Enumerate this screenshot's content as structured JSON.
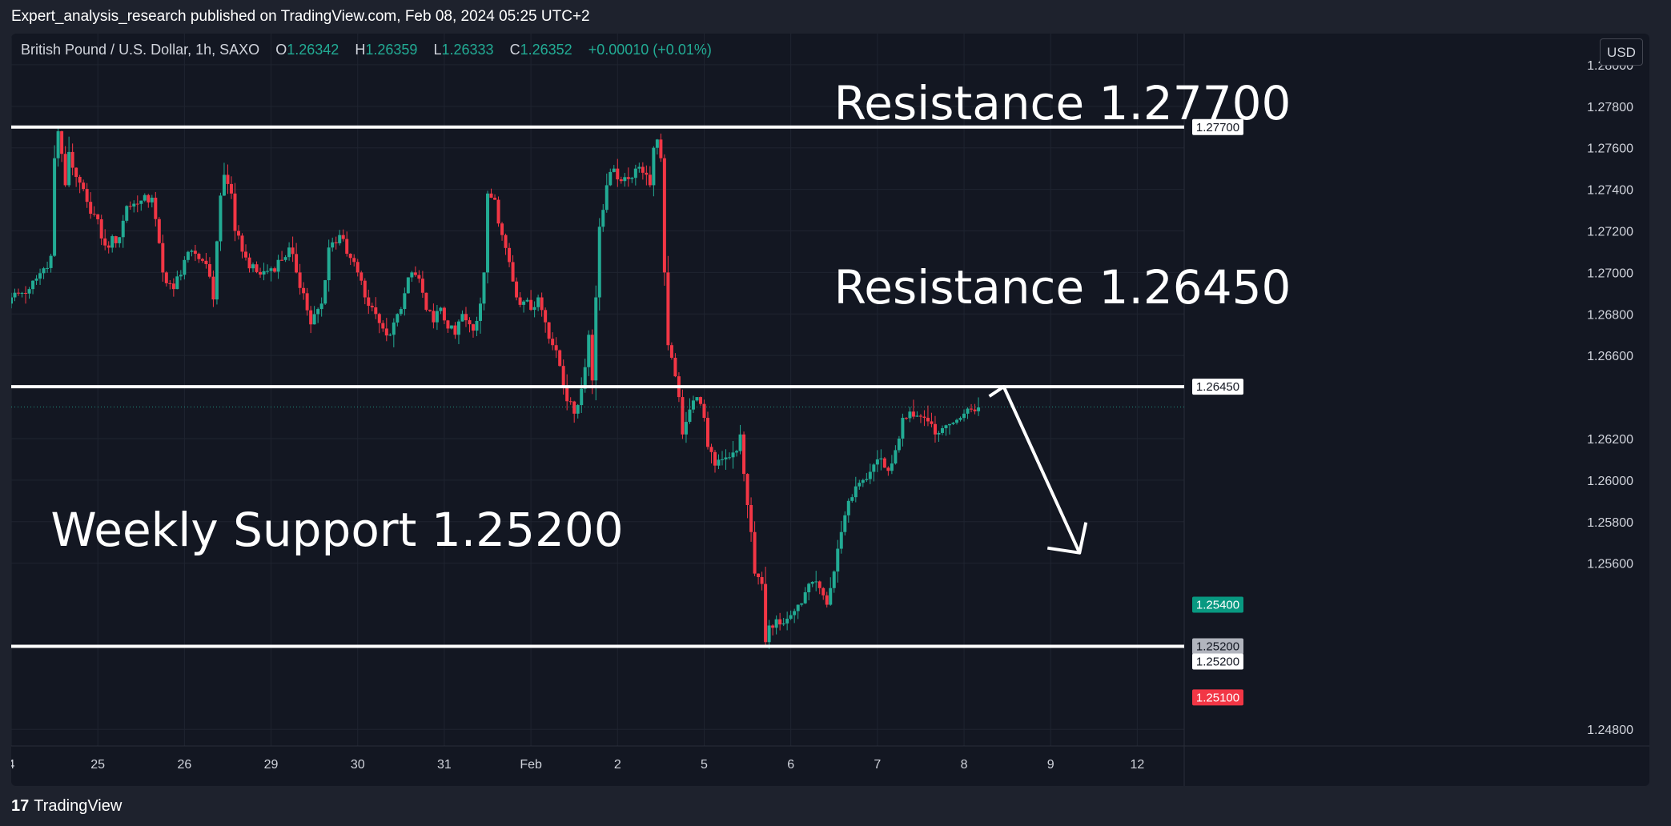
{
  "header": {
    "publisher_line": "Expert_analysis_research published on TradingView.com, Feb 08, 2024 05:25 UTC+2"
  },
  "legend": {
    "symbol": "British Pound / U.S. Dollar, 1h, SAXO",
    "o_label": "O",
    "o_value": "1.26342",
    "h_label": "H",
    "h_value": "1.26359",
    "l_label": "L",
    "l_value": "1.26333",
    "c_label": "C",
    "c_value": "1.26352",
    "change": "+0.00010 (+0.01%)"
  },
  "currency_button": "USD",
  "footer": {
    "logo_mark": "17",
    "logo_text": "TradingView"
  },
  "colors": {
    "background": "#131722",
    "up": "#22ab94",
    "down": "#f23645",
    "grid": "#1f2430",
    "annotation": "#ffffff"
  },
  "chart_data": {
    "type": "candlestick",
    "title": "",
    "y_axis": {
      "ylim": [
        1.2472,
        1.2815
      ],
      "ticks": [
        "1.28000",
        "1.27800",
        "1.27600",
        "1.27400",
        "1.27200",
        "1.27000",
        "1.26800",
        "1.26600",
        "1.26200",
        "1.26000",
        "1.25800",
        "1.25600",
        "1.24800"
      ]
    },
    "x_axis": {
      "tick_labels": [
        {
          "label": "4",
          "index": 0
        },
        {
          "label": "25",
          "index": 24
        },
        {
          "label": "26",
          "index": 48
        },
        {
          "label": "29",
          "index": 72
        },
        {
          "label": "30",
          "index": 96
        },
        {
          "label": "31",
          "index": 120
        },
        {
          "label": "Feb",
          "index": 144
        },
        {
          "label": "2",
          "index": 168
        },
        {
          "label": "5",
          "index": 192
        },
        {
          "label": "6",
          "index": 216
        },
        {
          "label": "7",
          "index": 240
        },
        {
          "label": "8",
          "index": 264
        },
        {
          "label": "9",
          "index": 288
        },
        {
          "label": "12",
          "index": 312
        }
      ],
      "domain": [
        0,
        325
      ]
    },
    "price_tags": [
      {
        "label": "1.27700",
        "value": 1.277,
        "style": "white"
      },
      {
        "label": "1.26450",
        "value": 1.2645,
        "style": "white"
      },
      {
        "label": "1.25400",
        "value": 1.254,
        "style": "green"
      },
      {
        "label": "1.25200",
        "value": 1.252,
        "style": "gray"
      },
      {
        "label": "1.25200",
        "value": 1.252,
        "style": "white",
        "offset": 1
      },
      {
        "label": "1.25100",
        "value": 1.251,
        "style": "red",
        "offset": 2
      }
    ],
    "current_price": 1.26352,
    "levels": [
      {
        "label": "Resistance 1.27700",
        "value": 1.277
      },
      {
        "label": "Resistance 1.26450",
        "value": 1.2645
      },
      {
        "label": "Weekly Support 1.25200",
        "value": 1.252
      }
    ],
    "projection_arrow": {
      "from": {
        "index": 275,
        "value": 1.2645
      },
      "mid": {
        "index": 290,
        "value": 1.257
      },
      "tip": {
        "index": 296,
        "value": 1.2565
      }
    },
    "anchors": [
      {
        "i": 0,
        "p": 1.2688
      },
      {
        "i": 5,
        "p": 1.2692
      },
      {
        "i": 9,
        "p": 1.2702
      },
      {
        "i": 11,
        "p": 1.2708
      },
      {
        "i": 12,
        "p": 1.2755
      },
      {
        "i": 13,
        "p": 1.2768
      },
      {
        "i": 15,
        "p": 1.2742
      },
      {
        "i": 16,
        "p": 1.2758
      },
      {
        "i": 18,
        "p": 1.2746
      },
      {
        "i": 21,
        "p": 1.2734
      },
      {
        "i": 23,
        "p": 1.2728
      },
      {
        "i": 26,
        "p": 1.2713
      },
      {
        "i": 30,
        "p": 1.2717
      },
      {
        "i": 32,
        "p": 1.2732
      },
      {
        "i": 35,
        "p": 1.2733
      },
      {
        "i": 39,
        "p": 1.2736
      },
      {
        "i": 42,
        "p": 1.27
      },
      {
        "i": 45,
        "p": 1.2692
      },
      {
        "i": 48,
        "p": 1.2706
      },
      {
        "i": 51,
        "p": 1.2709
      },
      {
        "i": 54,
        "p": 1.2704
      },
      {
        "i": 56,
        "p": 1.2687
      },
      {
        "i": 57,
        "p": 1.2715
      },
      {
        "i": 58,
        "p": 1.2737
      },
      {
        "i": 59,
        "p": 1.2747
      },
      {
        "i": 61,
        "p": 1.2738
      },
      {
        "i": 62,
        "p": 1.272
      },
      {
        "i": 64,
        "p": 1.271
      },
      {
        "i": 66,
        "p": 1.2702
      },
      {
        "i": 69,
        "p": 1.2699
      },
      {
        "i": 72,
        "p": 1.2702
      },
      {
        "i": 75,
        "p": 1.2706
      },
      {
        "i": 77,
        "p": 1.2712
      },
      {
        "i": 79,
        "p": 1.27
      },
      {
        "i": 81,
        "p": 1.269
      },
      {
        "i": 83,
        "p": 1.2675
      },
      {
        "i": 86,
        "p": 1.2685
      },
      {
        "i": 88,
        "p": 1.2712
      },
      {
        "i": 91,
        "p": 1.2718
      },
      {
        "i": 93,
        "p": 1.2709
      },
      {
        "i": 96,
        "p": 1.27
      },
      {
        "i": 98,
        "p": 1.2688
      },
      {
        "i": 101,
        "p": 1.268
      },
      {
        "i": 103,
        "p": 1.2673
      },
      {
        "i": 105,
        "p": 1.267
      },
      {
        "i": 107,
        "p": 1.268
      },
      {
        "i": 109,
        "p": 1.269
      },
      {
        "i": 111,
        "p": 1.27
      },
      {
        "i": 113,
        "p": 1.2697
      },
      {
        "i": 115,
        "p": 1.2682
      },
      {
        "i": 117,
        "p": 1.2676
      },
      {
        "i": 119,
        "p": 1.2683
      },
      {
        "i": 121,
        "p": 1.2673
      },
      {
        "i": 123,
        "p": 1.267
      },
      {
        "i": 125,
        "p": 1.268
      },
      {
        "i": 126,
        "p": 1.2677
      },
      {
        "i": 128,
        "p": 1.2672
      },
      {
        "i": 130,
        "p": 1.2685
      },
      {
        "i": 131,
        "p": 1.27
      },
      {
        "i": 132,
        "p": 1.2738
      },
      {
        "i": 134,
        "p": 1.2735
      },
      {
        "i": 136,
        "p": 1.2718
      },
      {
        "i": 138,
        "p": 1.2705
      },
      {
        "i": 140,
        "p": 1.2688
      },
      {
        "i": 142,
        "p": 1.2686
      },
      {
        "i": 144,
        "p": 1.2682
      },
      {
        "i": 146,
        "p": 1.2688
      },
      {
        "i": 148,
        "p": 1.2676
      },
      {
        "i": 150,
        "p": 1.2665
      },
      {
        "i": 152,
        "p": 1.2655
      },
      {
        "i": 154,
        "p": 1.2638
      },
      {
        "i": 156,
        "p": 1.2632
      },
      {
        "i": 158,
        "p": 1.2644
      },
      {
        "i": 160,
        "p": 1.267
      },
      {
        "i": 161,
        "p": 1.2648
      },
      {
        "i": 162,
        "p": 1.2688
      },
      {
        "i": 163,
        "p": 1.2722
      },
      {
        "i": 165,
        "p": 1.2742
      },
      {
        "i": 167,
        "p": 1.275
      },
      {
        "i": 169,
        "p": 1.2744
      },
      {
        "i": 171,
        "p": 1.2745
      },
      {
        "i": 173,
        "p": 1.275
      },
      {
        "i": 175,
        "p": 1.2748
      },
      {
        "i": 177,
        "p": 1.2742
      },
      {
        "i": 178,
        "p": 1.276
      },
      {
        "i": 179,
        "p": 1.2764
      },
      {
        "i": 180,
        "p": 1.2755
      },
      {
        "i": 181,
        "p": 1.27
      },
      {
        "i": 182,
        "p": 1.2665
      },
      {
        "i": 184,
        "p": 1.265
      },
      {
        "i": 185,
        "p": 1.264
      },
      {
        "i": 186,
        "p": 1.2622
      },
      {
        "i": 188,
        "p": 1.2634
      },
      {
        "i": 190,
        "p": 1.264
      },
      {
        "i": 192,
        "p": 1.263
      },
      {
        "i": 193,
        "p": 1.2616
      },
      {
        "i": 195,
        "p": 1.2607
      },
      {
        "i": 197,
        "p": 1.261
      },
      {
        "i": 199,
        "p": 1.2611
      },
      {
        "i": 201,
        "p": 1.2614
      },
      {
        "i": 202,
        "p": 1.2622
      },
      {
        "i": 203,
        "p": 1.2603
      },
      {
        "i": 204,
        "p": 1.2588
      },
      {
        "i": 205,
        "p": 1.2575
      },
      {
        "i": 206,
        "p": 1.2555
      },
      {
        "i": 208,
        "p": 1.255
      },
      {
        "i": 209,
        "p": 1.2522
      },
      {
        "i": 210,
        "p": 1.253
      },
      {
        "i": 212,
        "p": 1.2533
      },
      {
        "i": 214,
        "p": 1.2531
      },
      {
        "i": 216,
        "p": 1.2535
      },
      {
        "i": 218,
        "p": 1.254
      },
      {
        "i": 220,
        "p": 1.2546
      },
      {
        "i": 222,
        "p": 1.2551
      },
      {
        "i": 224,
        "p": 1.2548
      },
      {
        "i": 226,
        "p": 1.254
      },
      {
        "i": 228,
        "p": 1.2556
      },
      {
        "i": 230,
        "p": 1.2575
      },
      {
        "i": 232,
        "p": 1.259
      },
      {
        "i": 234,
        "p": 1.2597
      },
      {
        "i": 236,
        "p": 1.26
      },
      {
        "i": 238,
        "p": 1.2604
      },
      {
        "i": 240,
        "p": 1.261
      },
      {
        "i": 242,
        "p": 1.2606
      },
      {
        "i": 244,
        "p": 1.2608
      },
      {
        "i": 246,
        "p": 1.262
      },
      {
        "i": 247,
        "p": 1.263
      },
      {
        "i": 249,
        "p": 1.2633
      },
      {
        "i": 251,
        "p": 1.2631
      },
      {
        "i": 253,
        "p": 1.263
      },
      {
        "i": 255,
        "p": 1.2627
      },
      {
        "i": 256,
        "p": 1.2622
      },
      {
        "i": 258,
        "p": 1.2625
      },
      {
        "i": 260,
        "p": 1.2627
      },
      {
        "i": 262,
        "p": 1.2629
      },
      {
        "i": 264,
        "p": 1.2632
      },
      {
        "i": 266,
        "p": 1.2634
      },
      {
        "i": 268,
        "p": 1.2635
      }
    ]
  }
}
